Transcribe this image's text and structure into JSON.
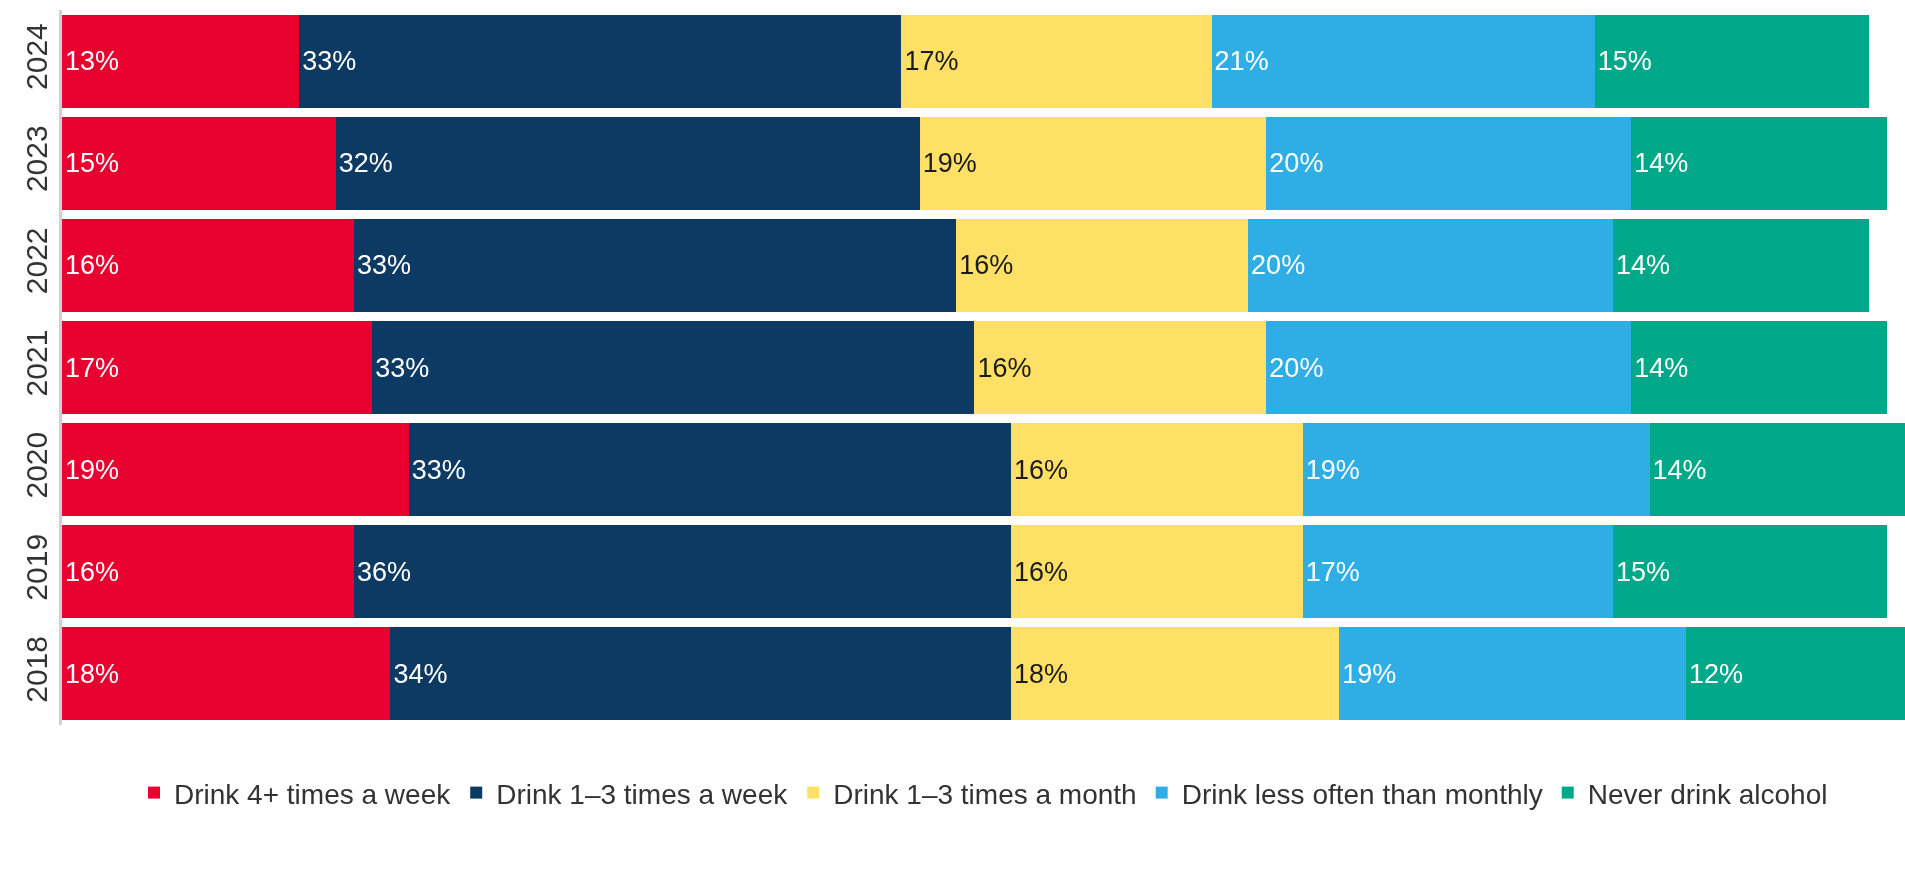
{
  "chart_data": {
    "type": "bar",
    "orientation": "horizontal",
    "stacked": true,
    "categories": [
      "2024",
      "2023",
      "2022",
      "2021",
      "2020",
      "2019",
      "2018"
    ],
    "xlim": [
      0,
      101
    ],
    "tick_labels": "y",
    "legend": "bottom",
    "series": [
      {
        "name": "Drink 4+ times a week",
        "color": "#e8002f",
        "values": [
          13,
          15,
          16,
          17,
          19,
          16,
          18
        ],
        "value_labels": [
          "13%",
          "15%",
          "16%",
          "17%",
          "19%",
          "16%",
          "18%"
        ]
      },
      {
        "name": "Drink 1–3 times a week",
        "color": "#0c3a63",
        "values": [
          33,
          32,
          33,
          33,
          33,
          36,
          34
        ],
        "value_labels": [
          "33%",
          "32%",
          "33%",
          "33%",
          "33%",
          "36%",
          "34%"
        ]
      },
      {
        "name": "Drink 1–3 times a month",
        "color": "#ffe066",
        "values": [
          17,
          19,
          16,
          16,
          16,
          16,
          18
        ],
        "value_labels": [
          "17%",
          "19%",
          "16%",
          "16%",
          "16%",
          "16%",
          "18%"
        ]
      },
      {
        "name": "Drink less often than monthly",
        "color": "#2eaee5",
        "values": [
          21,
          20,
          20,
          20,
          19,
          17,
          19
        ],
        "value_labels": [
          "21%",
          "20%",
          "20%",
          "20%",
          "19%",
          "17%",
          "19%"
        ]
      },
      {
        "name": "Never drink alcohol",
        "color": "#00a88a",
        "values": [
          15,
          14,
          14,
          14,
          14,
          15,
          12
        ],
        "value_labels": [
          "15%",
          "14%",
          "14%",
          "14%",
          "14%",
          "15%",
          "12%"
        ]
      }
    ]
  }
}
